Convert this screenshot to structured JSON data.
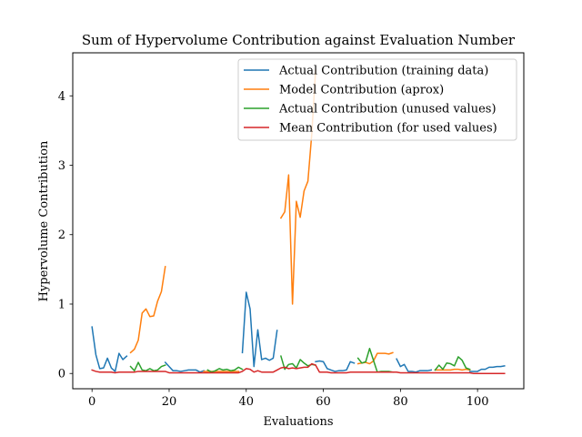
{
  "chart_data": {
    "type": "line",
    "title": "Sum of Hypervolume Contribution against Evaluation Number",
    "xlabel": "Evaluations",
    "ylabel": "Hypervolume Contribution",
    "xlim": [
      -5,
      112
    ],
    "ylim": [
      -0.22,
      4.62
    ],
    "xticks": [
      0,
      20,
      40,
      60,
      80,
      100
    ],
    "yticks": [
      0,
      1,
      2,
      3,
      4
    ],
    "grid": false,
    "legend_position": "top-right",
    "series": [
      {
        "name": "Actual Contribution (training data)",
        "color": "#1f77b4",
        "segments": [
          [
            [
              0,
              0.67
            ],
            [
              1,
              0.27
            ],
            [
              2,
              0.07
            ],
            [
              3,
              0.08
            ],
            [
              4,
              0.22
            ],
            [
              5,
              0.08
            ],
            [
              6,
              0.03
            ],
            [
              7,
              0.29
            ],
            [
              8,
              0.2
            ],
            [
              9,
              0.25
            ]
          ],
          [
            [
              19,
              0.16
            ],
            [
              20,
              0.1
            ],
            [
              21,
              0.04
            ],
            [
              22,
              0.04
            ],
            [
              23,
              0.03
            ],
            [
              24,
              0.04
            ],
            [
              25,
              0.05
            ],
            [
              26,
              0.05
            ],
            [
              27,
              0.05
            ],
            [
              28,
              0.02
            ],
            [
              29,
              0.04
            ]
          ],
          [
            [
              39,
              0.3
            ],
            [
              40,
              1.17
            ],
            [
              41,
              0.93
            ],
            [
              42,
              0.1
            ],
            [
              43,
              0.63
            ],
            [
              44,
              0.2
            ],
            [
              45,
              0.22
            ],
            [
              46,
              0.19
            ],
            [
              47,
              0.22
            ],
            [
              48,
              0.62
            ]
          ],
          [
            [
              58,
              0.17
            ],
            [
              59,
              0.18
            ],
            [
              60,
              0.17
            ],
            [
              61,
              0.07
            ],
            [
              62,
              0.05
            ],
            [
              63,
              0.03
            ],
            [
              64,
              0.04
            ],
            [
              65,
              0.04
            ],
            [
              66,
              0.05
            ],
            [
              67,
              0.17
            ],
            [
              68,
              0.15
            ]
          ],
          [
            [
              79,
              0.21
            ],
            [
              80,
              0.1
            ],
            [
              81,
              0.13
            ],
            [
              82,
              0.03
            ],
            [
              83,
              0.03
            ],
            [
              84,
              0.02
            ],
            [
              85,
              0.04
            ],
            [
              86,
              0.04
            ],
            [
              87,
              0.04
            ],
            [
              88,
              0.05
            ]
          ],
          [
            [
              98,
              0.03
            ],
            [
              99,
              0.03
            ],
            [
              100,
              0.03
            ],
            [
              101,
              0.06
            ],
            [
              102,
              0.06
            ],
            [
              103,
              0.09
            ],
            [
              104,
              0.09
            ],
            [
              105,
              0.1
            ],
            [
              106,
              0.1
            ],
            [
              107,
              0.11
            ]
          ]
        ]
      },
      {
        "name": "Model Contribution (aprox)",
        "color": "#ff7f0e",
        "segments": [
          [
            [
              10,
              0.3
            ],
            [
              11,
              0.35
            ],
            [
              12,
              0.48
            ],
            [
              13,
              0.87
            ],
            [
              14,
              0.93
            ],
            [
              15,
              0.82
            ],
            [
              16,
              0.83
            ],
            [
              17,
              1.04
            ],
            [
              18,
              1.18
            ],
            [
              19,
              1.54
            ]
          ],
          [
            [
              29,
              0.03
            ],
            [
              30,
              0.03
            ],
            [
              31,
              0.03
            ],
            [
              32,
              0.03
            ],
            [
              33,
              0.03
            ],
            [
              34,
              0.03
            ],
            [
              35,
              0.03
            ],
            [
              36,
              0.03
            ],
            [
              37,
              0.03
            ],
            [
              38,
              0.03
            ]
          ],
          [
            [
              49,
              2.24
            ],
            [
              50,
              2.33
            ],
            [
              51,
              2.86
            ],
            [
              52,
              1.0
            ],
            [
              53,
              2.48
            ],
            [
              54,
              2.25
            ],
            [
              55,
              2.63
            ],
            [
              56,
              2.77
            ],
            [
              57,
              3.45
            ],
            [
              58,
              4.37
            ]
          ],
          [
            [
              69,
              0.14
            ],
            [
              70,
              0.15
            ],
            [
              71,
              0.16
            ],
            [
              72,
              0.14
            ],
            [
              73,
              0.18
            ],
            [
              74,
              0.29
            ],
            [
              75,
              0.29
            ],
            [
              76,
              0.29
            ],
            [
              77,
              0.28
            ],
            [
              78,
              0.3
            ]
          ],
          [
            [
              89,
              0.05
            ],
            [
              90,
              0.05
            ],
            [
              91,
              0.05
            ],
            [
              92,
              0.05
            ],
            [
              93,
              0.05
            ],
            [
              94,
              0.06
            ],
            [
              95,
              0.06
            ],
            [
              96,
              0.05
            ],
            [
              97,
              0.06
            ],
            [
              98,
              0.05
            ]
          ]
        ]
      },
      {
        "name": "Actual Contribution (unused values)",
        "color": "#2ca02c",
        "segments": [
          [
            [
              10,
              0.1
            ],
            [
              11,
              0.04
            ],
            [
              12,
              0.16
            ],
            [
              13,
              0.05
            ],
            [
              14,
              0.04
            ],
            [
              15,
              0.07
            ],
            [
              16,
              0.04
            ],
            [
              17,
              0.05
            ],
            [
              18,
              0.1
            ],
            [
              19,
              0.12
            ]
          ],
          [
            [
              30,
              0.05
            ],
            [
              31,
              0.02
            ],
            [
              32,
              0.04
            ],
            [
              33,
              0.07
            ],
            [
              34,
              0.05
            ],
            [
              35,
              0.06
            ],
            [
              36,
              0.04
            ],
            [
              37,
              0.05
            ],
            [
              38,
              0.09
            ],
            [
              39,
              0.06
            ]
          ],
          [
            [
              49,
              0.25
            ],
            [
              50,
              0.06
            ],
            [
              51,
              0.13
            ],
            [
              52,
              0.14
            ],
            [
              53,
              0.08
            ],
            [
              54,
              0.2
            ],
            [
              55,
              0.15
            ],
            [
              56,
              0.11
            ],
            [
              57,
              0.13
            ],
            [
              58,
              0.12
            ]
          ],
          [
            [
              69,
              0.22
            ],
            [
              70,
              0.15
            ],
            [
              71,
              0.17
            ],
            [
              72,
              0.36
            ],
            [
              73,
              0.19
            ],
            [
              74,
              0.02
            ],
            [
              75,
              0.03
            ],
            [
              76,
              0.03
            ],
            [
              77,
              0.03
            ],
            [
              78,
              0.02
            ]
          ],
          [
            [
              89,
              0.05
            ],
            [
              90,
              0.12
            ],
            [
              91,
              0.06
            ],
            [
              92,
              0.15
            ],
            [
              93,
              0.14
            ],
            [
              94,
              0.11
            ],
            [
              95,
              0.24
            ],
            [
              96,
              0.19
            ],
            [
              97,
              0.08
            ],
            [
              98,
              0.06
            ]
          ]
        ]
      },
      {
        "name": "Mean Contribution (for used values)",
        "color": "#d62728",
        "segments": [
          [
            [
              0,
              0.05
            ],
            [
              1,
              0.03
            ],
            [
              2,
              0.02
            ],
            [
              3,
              0.02
            ],
            [
              4,
              0.02
            ],
            [
              5,
              0.02
            ],
            [
              6,
              0.01
            ],
            [
              7,
              0.02
            ],
            [
              8,
              0.02
            ],
            [
              9,
              0.02
            ],
            [
              10,
              0.02
            ],
            [
              11,
              0.02
            ],
            [
              12,
              0.03
            ],
            [
              13,
              0.03
            ],
            [
              14,
              0.03
            ],
            [
              15,
              0.03
            ],
            [
              16,
              0.03
            ],
            [
              17,
              0.03
            ],
            [
              18,
              0.03
            ],
            [
              19,
              0.03
            ],
            [
              20,
              0.01
            ],
            [
              21,
              0.01
            ],
            [
              22,
              0.01
            ],
            [
              23,
              0.01
            ],
            [
              24,
              0.01
            ],
            [
              25,
              0.01
            ],
            [
              26,
              0.01
            ],
            [
              27,
              0.01
            ],
            [
              28,
              0.01
            ],
            [
              29,
              0.01
            ],
            [
              30,
              0.01
            ],
            [
              31,
              0.01
            ],
            [
              32,
              0.01
            ],
            [
              33,
              0.01
            ],
            [
              34,
              0.01
            ],
            [
              35,
              0.01
            ],
            [
              36,
              0.01
            ],
            [
              37,
              0.01
            ],
            [
              38,
              0.01
            ],
            [
              39,
              0.03
            ],
            [
              40,
              0.07
            ],
            [
              41,
              0.06
            ],
            [
              42,
              0.02
            ],
            [
              43,
              0.04
            ],
            [
              44,
              0.02
            ],
            [
              45,
              0.02
            ],
            [
              46,
              0.02
            ],
            [
              47,
              0.02
            ],
            [
              48,
              0.05
            ],
            [
              49,
              0.08
            ],
            [
              50,
              0.09
            ],
            [
              51,
              0.07
            ],
            [
              52,
              0.08
            ],
            [
              53,
              0.07
            ],
            [
              54,
              0.08
            ],
            [
              55,
              0.09
            ],
            [
              56,
              0.09
            ],
            [
              57,
              0.14
            ],
            [
              58,
              0.12
            ],
            [
              59,
              0.02
            ],
            [
              60,
              0.02
            ],
            [
              61,
              0.02
            ],
            [
              62,
              0.01
            ],
            [
              63,
              0.01
            ],
            [
              64,
              0.01
            ],
            [
              65,
              0.01
            ],
            [
              66,
              0.01
            ],
            [
              67,
              0.02
            ],
            [
              68,
              0.02
            ],
            [
              69,
              0.02
            ],
            [
              70,
              0.02
            ],
            [
              71,
              0.02
            ],
            [
              72,
              0.02
            ],
            [
              73,
              0.02
            ],
            [
              74,
              0.02
            ],
            [
              75,
              0.02
            ],
            [
              76,
              0.02
            ],
            [
              77,
              0.02
            ],
            [
              78,
              0.02
            ],
            [
              79,
              0.02
            ],
            [
              80,
              0.01
            ],
            [
              81,
              0.01
            ],
            [
              82,
              0.01
            ],
            [
              83,
              0.01
            ],
            [
              84,
              0.01
            ],
            [
              85,
              0.01
            ],
            [
              86,
              0.01
            ],
            [
              87,
              0.01
            ],
            [
              88,
              0.01
            ],
            [
              89,
              0.01
            ],
            [
              90,
              0.01
            ],
            [
              91,
              0.01
            ],
            [
              92,
              0.01
            ],
            [
              93,
              0.01
            ],
            [
              94,
              0.01
            ],
            [
              95,
              0.01
            ],
            [
              96,
              0.01
            ],
            [
              97,
              0.01
            ],
            [
              98,
              0.01
            ],
            [
              99,
              0.0
            ],
            [
              100,
              0.0
            ],
            [
              101,
              0.0
            ],
            [
              102,
              0.0
            ],
            [
              103,
              0.0
            ],
            [
              104,
              0.0
            ],
            [
              105,
              0.0
            ],
            [
              106,
              0.0
            ],
            [
              107,
              0.0
            ]
          ]
        ]
      }
    ]
  }
}
